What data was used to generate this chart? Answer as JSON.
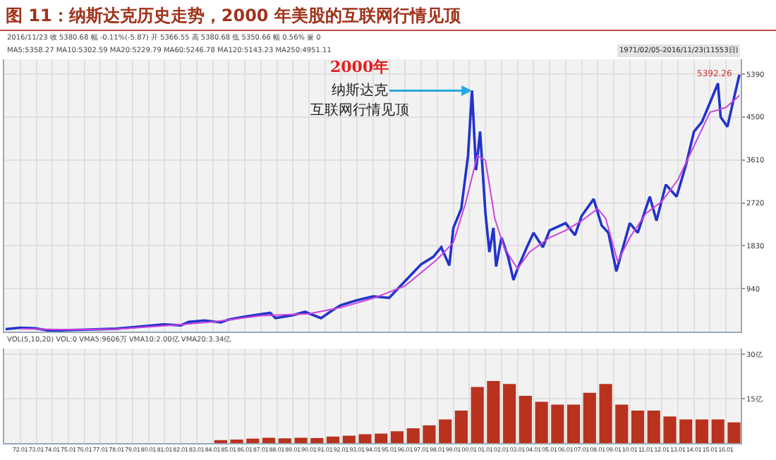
{
  "chart_data": [
    {
      "type": "line",
      "title": "图 11：纳斯达克历史走势，2000 年美股的互联网行情见顶",
      "annotations": [
        "2016/11/23 收 5380.68 幅 -0.11%(-5.87) 开 5366.55 高 5380.68 低 5350.66 幅 0.56% 量 0",
        "MA5:5358.27 MA10:5302.59 MA20:5229.79 MA60:5246.78 MA120:5143.23 MA250:4951.11",
        "1971/02/05-2016/11/23(11553日)",
        "2000年",
        "互联网行情见顶",
        {
          "text": "5392.26",
          "x": "2016-11",
          "y": 5392
        },
        {
          "text": "纳斯达克",
          "x": "2000-03",
          "y": 5050
        }
      ],
      "series": [
        {
          "color": "#2233cc",
          "x": [
            "1971-02",
            "1972-01",
            "1972-12",
            "1974-01",
            "1974-10",
            "1976-01",
            "1977-01",
            "1978-01",
            "1979-01",
            "1980-01",
            "1980-12",
            "1982-01",
            "1982-07",
            "1983-07",
            "1984-07",
            "1985-01",
            "1986-01",
            "1987-08",
            "1987-12",
            "1989-01",
            "1989-10",
            "1990-10",
            "1991-07",
            "1992-01",
            "1993-01",
            "1994-01",
            "1995-01",
            "1996-01",
            "1997-01",
            "1997-10",
            "1998-04",
            "1998-10",
            "1999-01",
            "1999-07",
            "1999-12",
            "2000-03",
            "2000-06",
            "2000-09",
            "2001-01",
            "2001-04",
            "2001-07",
            "2001-09",
            "2002-01",
            "2002-06",
            "2002-10",
            "2003-01",
            "2003-08",
            "2004-01",
            "2004-08",
            "2005-01",
            "2006-01",
            "2006-08",
            "2007-01",
            "2007-10",
            "2008-04",
            "2008-09",
            "2009-03",
            "2010-01",
            "2010-07",
            "2011-04",
            "2011-09",
            "2012-04",
            "2012-12",
            "2013-07",
            "2014-01",
            "2014-07",
            "2015-01",
            "2015-07",
            "2015-09",
            "2016-02",
            "2016-07",
            "2016-11"
          ],
          "values": [
            100,
            130,
            120,
            60,
            80,
            90,
            100,
            110,
            140,
            170,
            200,
            180,
            250,
            280,
            240,
            300,
            360,
            440,
            330,
            390,
            460,
            330,
            500,
            600,
            700,
            780,
            750,
            1100,
            1450,
            1600,
            1800,
            1420,
            2200,
            2600,
            3700,
            5050,
            3400,
            4200,
            2500,
            1700,
            2200,
            1400,
            2000,
            1600,
            1120,
            1350,
            1800,
            2100,
            1800,
            2150,
            2300,
            2050,
            2450,
            2800,
            2250,
            2100,
            1300,
            2300,
            2100,
            2850,
            2350,
            3100,
            2850,
            3500,
            4200,
            4400,
            4800,
            5200,
            4500,
            4300,
            4900,
            5380
          ]
        },
        {
          "color": "#cc44dd",
          "x": [
            "1972-01",
            "1975-01",
            "1978-01",
            "1981-01",
            "1984-01",
            "1987-01",
            "1990-01",
            "1992-01",
            "1994-01",
            "1996-01",
            "1998-01",
            "1999-01",
            "1999-10",
            "2000-07",
            "2001-01",
            "2001-08",
            "2002-03",
            "2003-01",
            "2003-10",
            "2005-01",
            "2006-01",
            "2007-01",
            "2008-01",
            "2008-07",
            "2009-04",
            "2010-01",
            "2011-01",
            "2012-01",
            "2013-01",
            "2014-01",
            "2015-01",
            "2016-01",
            "2016-11"
          ],
          "values": [
            110,
            90,
            100,
            170,
            250,
            380,
            420,
            550,
            740,
            1000,
            1550,
            1900,
            2700,
            3700,
            3600,
            2400,
            1800,
            1350,
            1700,
            2000,
            2150,
            2350,
            2600,
            2400,
            1500,
            2000,
            2500,
            2750,
            3200,
            3900,
            4600,
            4700,
            4950
          ]
        }
      ],
      "xlim": [
        "1971-01",
        "2016-12"
      ],
      "ylim": [
        50,
        5700
      ],
      "yticks": [
        940,
        1830,
        2720,
        3610,
        4500,
        5390
      ],
      "grid": true,
      "tick_labels": "y"
    },
    {
      "type": "bar",
      "annotations": [
        "VOL(5,10,20) VOL:0 VMA5:9606万 VMA10:2.00亿 VMA20:3.34亿"
      ],
      "x": [
        "1984-07",
        "1985-07",
        "1986-07",
        "1987-07",
        "1988-07",
        "1989-07",
        "1990-07",
        "1991-07",
        "1992-07",
        "1993-07",
        "1994-07",
        "1995-07",
        "1996-07",
        "1997-07",
        "1998-07",
        "1999-07",
        "2000-07",
        "2001-07",
        "2002-07",
        "2003-07",
        "2004-07",
        "2005-07",
        "2006-07",
        "2007-07",
        "2008-07",
        "2009-07",
        "2010-07",
        "2011-07",
        "2012-07",
        "2013-07",
        "2014-07",
        "2015-07",
        "2016-07"
      ],
      "values": [
        1,
        1.2,
        1.5,
        1.8,
        1.6,
        1.8,
        1.7,
        2.2,
        2.5,
        3,
        3.2,
        4,
        5,
        6,
        8,
        11,
        19,
        21,
        20,
        16,
        14,
        13,
        13,
        17,
        20,
        13,
        11,
        11,
        9,
        8,
        8,
        8,
        7
      ],
      "color": "#b8321e",
      "xlim": [
        "1971-01",
        "2016-12"
      ],
      "ylim": [
        0,
        32
      ],
      "yticks": [
        {
          "value": 15,
          "label": "15亿"
        },
        {
          "value": 30,
          "label": "30亿"
        }
      ],
      "grid": true,
      "xticks": [
        {
          "value": "1972-01",
          "label": "72.01"
        },
        {
          "value": "1973-01",
          "label": "73.01"
        },
        {
          "value": "1974-01",
          "label": "74.01"
        },
        {
          "value": "1975-01",
          "label": "75.01"
        },
        {
          "value": "1976-01",
          "label": "76.01"
        },
        {
          "value": "1977-01",
          "label": "77.01"
        },
        {
          "value": "1978-01",
          "label": "78.01"
        },
        {
          "value": "1979-01",
          "label": "79.01"
        },
        {
          "value": "1980-01",
          "label": "80.01"
        },
        {
          "value": "1981-01",
          "label": "81.01"
        },
        {
          "value": "1982-01",
          "label": "82.01"
        },
        {
          "value": "1983-01",
          "label": "83.01"
        },
        {
          "value": "1984-01",
          "label": "84.01"
        },
        {
          "value": "1985-01",
          "label": "85.01"
        },
        {
          "value": "1986-01",
          "label": "86.01"
        },
        {
          "value": "1987-01",
          "label": "87.01"
        },
        {
          "value": "1988-01",
          "label": "88.01"
        },
        {
          "value": "1989-01",
          "label": "89.01"
        },
        {
          "value": "1990-01",
          "label": "90.01"
        },
        {
          "value": "1991-01",
          "label": "91.01"
        },
        {
          "value": "1992-01",
          "label": "92.01"
        },
        {
          "value": "1993-01",
          "label": "93.01"
        },
        {
          "value": "1994-01",
          "label": "94.01"
        },
        {
          "value": "1995-01",
          "label": "95.01"
        },
        {
          "value": "1996-01",
          "label": "96.01"
        },
        {
          "value": "1997-01",
          "label": "97.01"
        },
        {
          "value": "1998-01",
          "label": "98.01"
        },
        {
          "value": "1999-01",
          "label": "99.01"
        },
        {
          "value": "2000-01",
          "label": "00.01"
        },
        {
          "value": "2001-01",
          "label": "01.01"
        },
        {
          "value": "2002-01",
          "label": "02.01"
        },
        {
          "value": "2003-01",
          "label": "03.01"
        },
        {
          "value": "2004-01",
          "label": "04.01"
        },
        {
          "value": "2005-01",
          "label": "05.01"
        },
        {
          "value": "2006-01",
          "label": "06.01"
        },
        {
          "value": "2007-01",
          "label": "07.01"
        },
        {
          "value": "2008-01",
          "label": "08.01"
        },
        {
          "value": "2009-01",
          "label": "09.01"
        },
        {
          "value": "2010-01",
          "label": "10.01"
        },
        {
          "value": "2011-01",
          "label": "11.01"
        },
        {
          "value": "2012-01",
          "label": "12.01"
        },
        {
          "value": "2013-01",
          "label": "13.01"
        },
        {
          "value": "2014-01",
          "label": "14.01"
        },
        {
          "value": "2015-01",
          "label": "15.01"
        },
        {
          "value": "2016-01",
          "label": "16.01"
        }
      ]
    }
  ]
}
